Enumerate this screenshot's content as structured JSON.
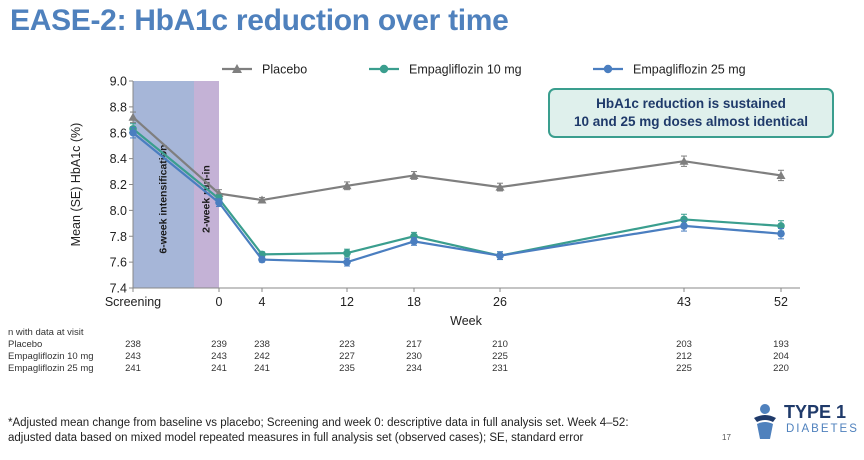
{
  "slide": {
    "title": "EASE-2: HbA1c reduction over time",
    "callout_line1": "HbA1c reduction is sustained",
    "callout_line2": "10 and 25 mg doses almost identical",
    "footnote_line1": "*Adjusted mean change from baseline vs placebo; Screening and week 0: descriptive data in full analysis set. Week 4–52:",
    "footnote_line2": "adjusted data based on mixed model repeated measures in full analysis set (observed cases); SE, standard error",
    "page_number": "17",
    "logo_text1": "TYPE 1",
    "logo_text2": "DIABETES"
  },
  "colors": {
    "placebo": "#7f7f7f",
    "empa10": "#3a9e8e",
    "empa25": "#4a7ec0",
    "intensification_band": "#a6b6d8",
    "runin_band": "#c4b2d6",
    "title": "#4f81bd"
  },
  "chart_data": {
    "type": "line",
    "title": "",
    "xlabel": "Week",
    "ylabel": "Mean (SE) HbA1c (%)",
    "ylim": [
      7.4,
      9.0
    ],
    "yticks": [
      "9.0",
      "8.8",
      "8.6",
      "8.4",
      "8.2",
      "8.0",
      "7.8",
      "7.6",
      "7.4"
    ],
    "x_labels": [
      "Screening",
      "0",
      "4",
      "12",
      "18",
      "26",
      "43",
      "52"
    ],
    "legend": "top",
    "grid": false,
    "bands": [
      {
        "label": "6-week intensification",
        "from": "Screening",
        "to": "-2"
      },
      {
        "label": "2-week run-in",
        "from": "-2",
        "to": "0"
      }
    ],
    "series": [
      {
        "name": "Placebo",
        "marker": "triangle",
        "values": [
          8.72,
          8.13,
          8.08,
          8.19,
          8.27,
          8.18,
          8.38,
          8.27
        ],
        "se": [
          0.04,
          0.03,
          0.02,
          0.03,
          0.03,
          0.03,
          0.04,
          0.04
        ]
      },
      {
        "name": "Empagliflozin 10 mg",
        "marker": "circle",
        "values": [
          8.63,
          8.09,
          7.66,
          7.67,
          7.8,
          7.65,
          7.93,
          7.88
        ],
        "se": [
          0.04,
          0.03,
          0.02,
          0.03,
          0.03,
          0.03,
          0.04,
          0.04
        ]
      },
      {
        "name": "Empagliflozin 25 mg",
        "marker": "circle",
        "values": [
          8.6,
          8.06,
          7.62,
          7.6,
          7.76,
          7.65,
          7.88,
          7.82
        ],
        "se": [
          0.04,
          0.03,
          0.02,
          0.03,
          0.03,
          0.03,
          0.04,
          0.04
        ]
      }
    ]
  },
  "n_table": {
    "header": "n with data at visit",
    "rows": [
      {
        "label": "Placebo",
        "values": [
          "238",
          "239",
          "238",
          "223",
          "217",
          "210",
          "203",
          "193"
        ]
      },
      {
        "label": "Empagliflozin 10 mg",
        "values": [
          "243",
          "243",
          "242",
          "227",
          "230",
          "225",
          "212",
          "204"
        ]
      },
      {
        "label": "Empagliflozin 25 mg",
        "values": [
          "241",
          "241",
          "241",
          "235",
          "234",
          "231",
          "225",
          "220"
        ]
      }
    ]
  }
}
